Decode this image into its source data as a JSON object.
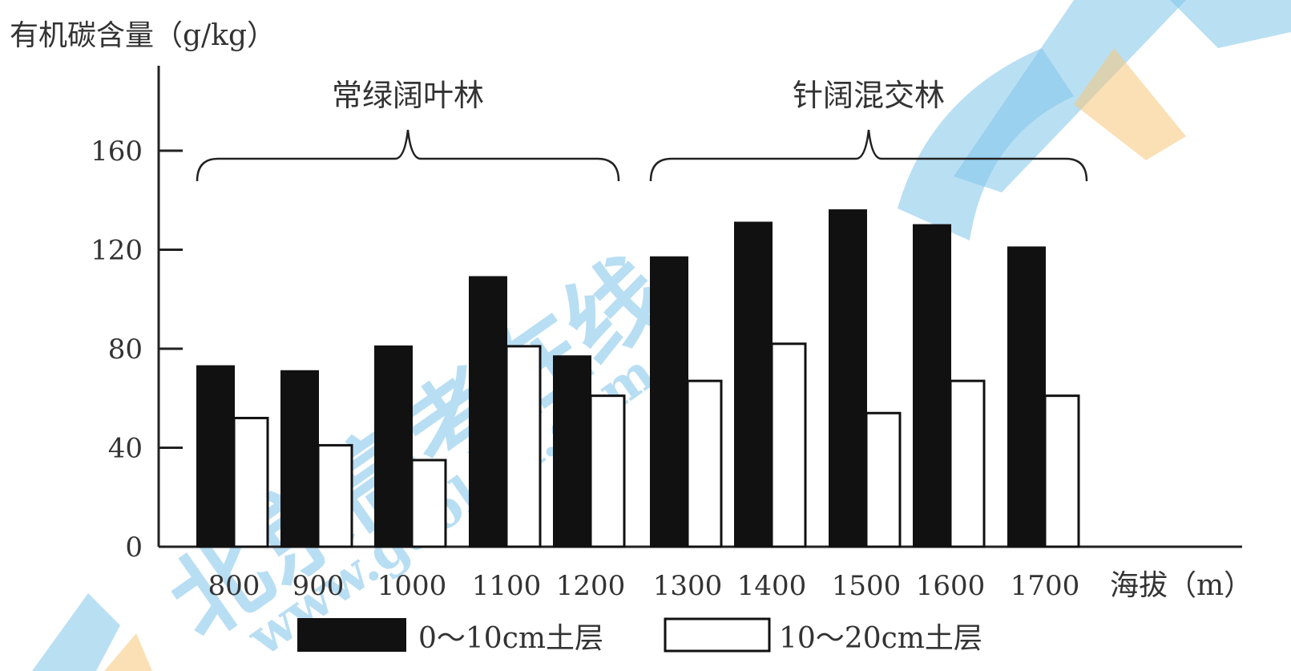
{
  "chart_data": {
    "type": "bar",
    "title": "",
    "ylabel": "有机碳含量（g/kg）",
    "xlabel": "海拔（m）",
    "ylim": [
      0,
      160
    ],
    "yticks": [
      "0",
      "40",
      "80",
      "120",
      "160"
    ],
    "categories": [
      "800",
      "900",
      "1000",
      "1100",
      "1200",
      "1300",
      "1400",
      "1500",
      "1600",
      "1700"
    ],
    "series": [
      {
        "name": "0～10cm土层",
        "color": "#111111",
        "values": [
          73,
          71,
          81,
          109,
          77,
          117,
          131,
          136,
          130,
          121
        ]
      },
      {
        "name": "10～20cm土层",
        "color": "#ffffff",
        "values": [
          52,
          41,
          35,
          81,
          61,
          67,
          82,
          54,
          67,
          61
        ]
      }
    ],
    "groups": [
      {
        "label": "常绿阔叶林",
        "from": "800",
        "to": "1200"
      },
      {
        "label": "针阔混交林",
        "from": "1300",
        "to": "1700"
      }
    ],
    "legend_position": "bottom",
    "grid": false
  },
  "watermark": {
    "text_cn": "北京高考在线",
    "text_url": "www.gaokzx.com"
  }
}
